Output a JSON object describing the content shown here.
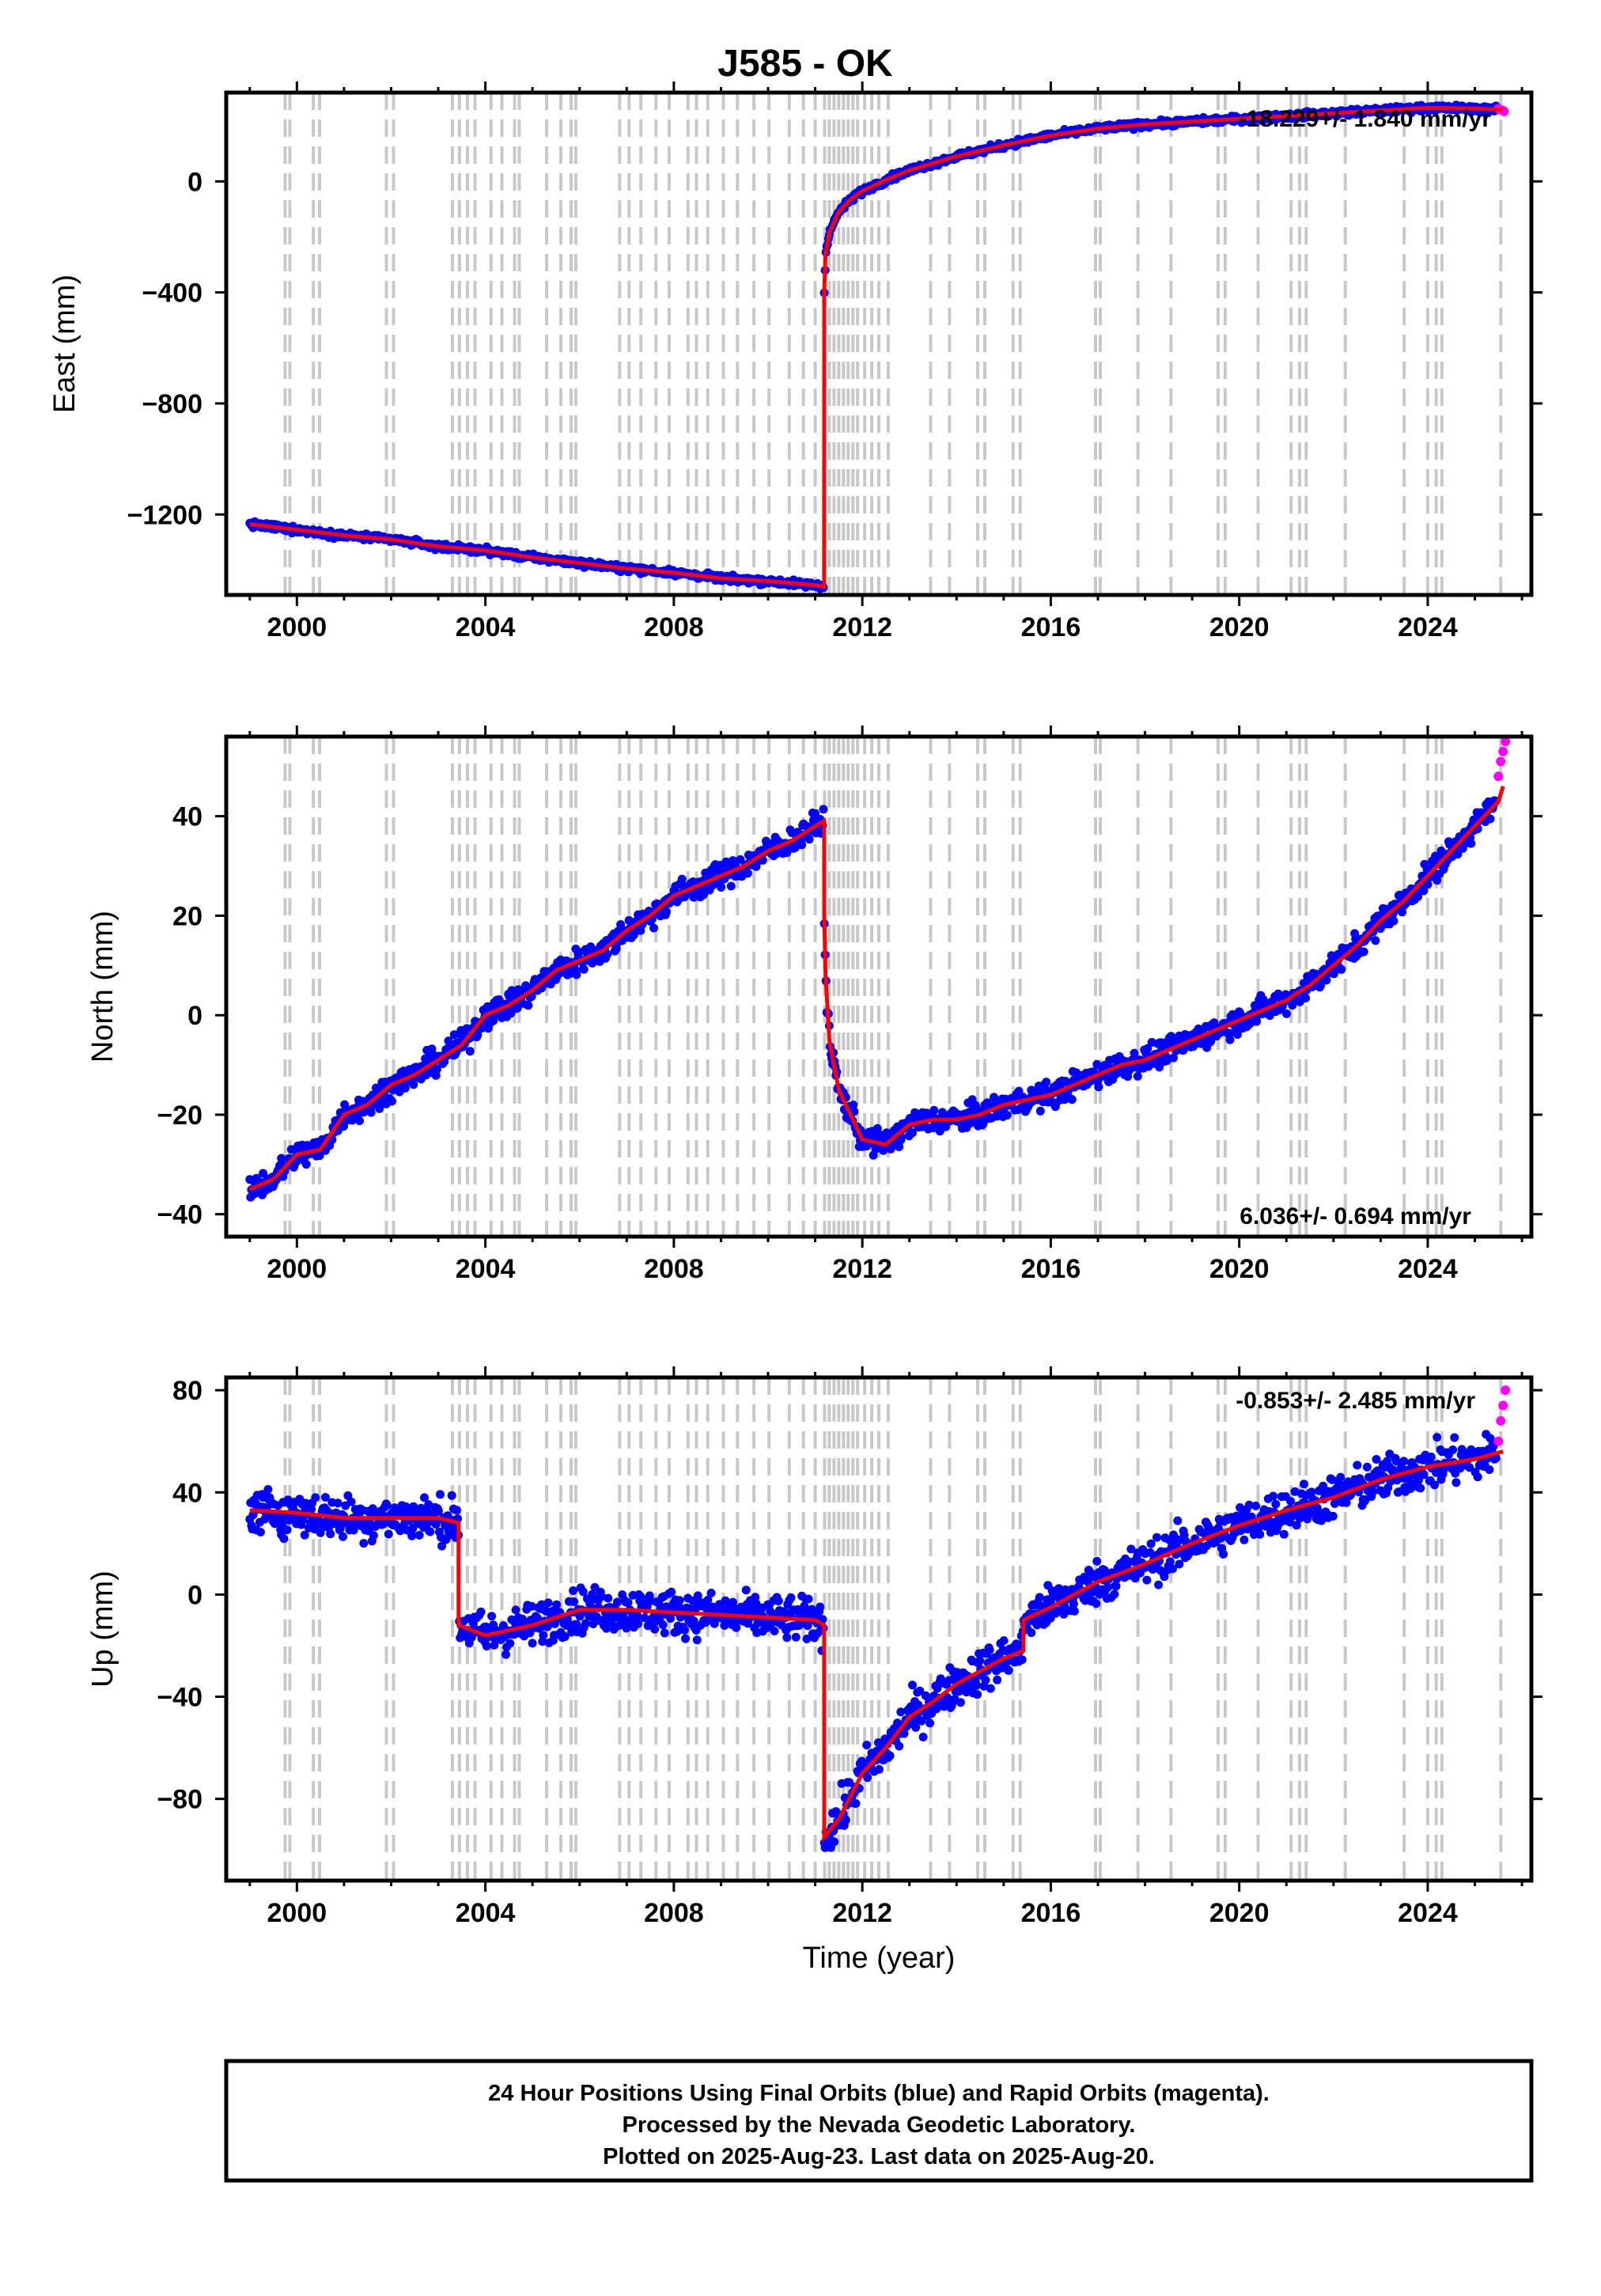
{
  "title": "J585 - OK",
  "caption": {
    "line1": "24 Hour Positions Using Final Orbits (blue) and Rapid Orbits (magenta).",
    "line2": "Processed by the Nevada Geodetic Laboratory.",
    "line3": "Plotted on 2025-Aug-23. Last data on 2025-Aug-20."
  },
  "colors": {
    "final_orbits": "#0000ff",
    "rapid_orbits": "#ff00ff",
    "model": "#ff0000",
    "events": "#c8c8c8"
  },
  "chart_data": [
    {
      "type": "scatter",
      "ylabel": "East (mm)",
      "xlabel": "",
      "xlim": [
        1998.5,
        2026.2
      ],
      "ylim": [
        -1490,
        320
      ],
      "xticks": [
        2000,
        2004,
        2008,
        2012,
        2016,
        2020,
        2024
      ],
      "yticks": [
        0,
        -400,
        -800,
        -1200
      ],
      "rate": "-18.229+/- 1.840 mm/yr",
      "grid": false,
      "model": {
        "x": [
          1999.0,
          2000.0,
          2001.0,
          2002.0,
          2003.0,
          2004.0,
          2005.0,
          2006.0,
          2007.0,
          2008.0,
          2009.0,
          2010.0,
          2011.0,
          2011.19,
          2011.192,
          2011.22,
          2011.3,
          2011.5,
          2011.75,
          2012.0,
          2012.5,
          2013.0,
          2014.0,
          2015.0,
          2016.0,
          2017.0,
          2018.0,
          2019.0,
          2020.0,
          2021.0,
          2022.0,
          2023.0,
          2024.0,
          2025.0,
          2025.6
        ],
        "y": [
          -1235,
          -1255,
          -1275,
          -1290,
          -1315,
          -1330,
          -1355,
          -1375,
          -1395,
          -1410,
          -1430,
          -1440,
          -1455,
          -1460,
          -400,
          -260,
          -185,
          -110,
          -65,
          -35,
          5,
          40,
          90,
          130,
          165,
          190,
          205,
          215,
          225,
          235,
          245,
          255,
          265,
          262,
          258
        ]
      },
      "blue_scatter": 8,
      "rapid": {
        "x": [
          2025.5,
          2025.55,
          2025.6,
          2025.62
        ],
        "y": [
          262,
          258,
          255,
          252
        ]
      }
    },
    {
      "type": "scatter",
      "ylabel": "North (mm)",
      "xlabel": "",
      "xlim": [
        1998.5,
        2026.2
      ],
      "ylim": [
        -44.5,
        56
      ],
      "xticks": [
        2000,
        2004,
        2008,
        2012,
        2016,
        2020,
        2024
      ],
      "yticks": [
        40,
        20,
        0,
        -20,
        -40
      ],
      "rate": "6.036+/- 0.694 mm/yr",
      "grid": false,
      "model": {
        "x": [
          1999.0,
          1999.5,
          2000.0,
          2000.5,
          2001.0,
          2001.5,
          2002.0,
          2002.5,
          2003.0,
          2003.5,
          2004.0,
          2004.5,
          2005.0,
          2005.5,
          2006.0,
          2006.5,
          2007.0,
          2007.5,
          2008.0,
          2008.5,
          2009.0,
          2009.5,
          2010.0,
          2010.5,
          2011.0,
          2011.19,
          2011.192,
          2011.22,
          2011.3,
          2011.5,
          2011.75,
          2012.0,
          2012.5,
          2013.0,
          2013.5,
          2014.0,
          2014.5,
          2015.0,
          2015.5,
          2016.0,
          2016.5,
          2017.0,
          2017.5,
          2018.0,
          2018.5,
          2019.0,
          2019.5,
          2020.0,
          2020.5,
          2021.0,
          2021.5,
          2022.0,
          2022.5,
          2023.0,
          2023.5,
          2024.0,
          2024.5,
          2025.0,
          2025.5,
          2025.6
        ],
        "y": [
          -35,
          -33,
          -28,
          -27,
          -20,
          -18,
          -14,
          -12,
          -9,
          -6,
          0,
          2,
          5,
          9,
          11,
          13,
          17,
          20,
          24,
          26,
          28,
          30,
          33,
          35,
          38,
          39,
          20,
          8,
          -5,
          -15,
          -20,
          -25,
          -26,
          -22,
          -21,
          -21,
          -20,
          -18,
          -17,
          -16,
          -14,
          -12,
          -10,
          -9,
          -7,
          -5,
          -3,
          -1,
          1,
          3,
          6,
          10,
          14,
          19,
          23,
          28,
          33,
          38,
          43,
          46
        ]
      },
      "blue_scatter": 1.8,
      "rapid": {
        "x": [
          2025.5,
          2025.55,
          2025.6,
          2025.65
        ],
        "y": [
          48,
          51,
          53,
          55
        ]
      }
    },
    {
      "type": "scatter",
      "ylabel": "Up (mm)",
      "xlabel": "Time (year)",
      "xlim": [
        1998.5,
        2026.2
      ],
      "ylim": [
        -112,
        85
      ],
      "xticks": [
        2000,
        2004,
        2008,
        2012,
        2016,
        2020,
        2024
      ],
      "yticks": [
        80,
        40,
        0,
        -40,
        -80
      ],
      "rate": "-0.853+/- 2.485 mm/yr",
      "grid": false,
      "model": {
        "x": [
          1999.0,
          2000.0,
          2001.0,
          2002.0,
          2003.0,
          2003.43,
          2003.432,
          2004.0,
          2005.0,
          2006.0,
          2007.0,
          2008.0,
          2009.0,
          2010.0,
          2011.0,
          2011.19,
          2011.192,
          2011.5,
          2012.0,
          2012.5,
          2013.0,
          2013.5,
          2014.0,
          2014.5,
          2015.0,
          2015.42,
          2015.422,
          2016.0,
          2017.0,
          2018.0,
          2019.0,
          2020.0,
          2021.0,
          2022.0,
          2023.0,
          2024.0,
          2025.0,
          2025.6
        ],
        "y": [
          33,
          32,
          30,
          30,
          30,
          28,
          -12,
          -16,
          -12,
          -6,
          -6,
          -7,
          -8,
          -9,
          -10,
          -12,
          -95,
          -88,
          -70,
          -60,
          -48,
          -42,
          -35,
          -30,
          -25,
          -22,
          -10,
          -5,
          5,
          12,
          20,
          27,
          33,
          38,
          45,
          50,
          53,
          56
        ]
      },
      "blue_scatter": 6,
      "rapid": {
        "x": [
          2025.5,
          2025.55,
          2025.6,
          2025.65
        ],
        "y": [
          60,
          68,
          74,
          80
        ]
      }
    }
  ],
  "event_years": [
    1999.75,
    1999.85,
    2000.35,
    2000.48,
    2001.9,
    2002.05,
    2003.3,
    2003.45,
    2003.62,
    2003.78,
    2004.12,
    2004.35,
    2004.62,
    2004.72,
    2005.3,
    2005.6,
    2005.82,
    2005.92,
    2006.85,
    2007.05,
    2007.3,
    2007.62,
    2007.9,
    2008.3,
    2008.48,
    2008.72,
    2009.05,
    2009.35,
    2009.7,
    2010.02,
    2010.45,
    2010.75,
    2011.0,
    2011.2,
    2011.3,
    2011.4,
    2011.5,
    2011.6,
    2011.7,
    2011.8,
    2011.9,
    2012.05,
    2012.2,
    2012.35,
    2012.55,
    2013.45,
    2013.85,
    2014.45,
    2014.6,
    2015.2,
    2015.35,
    2016.95,
    2017.05,
    2017.85,
    2018.55,
    2019.55,
    2019.7,
    2020.4,
    2021.1,
    2021.28,
    2021.42,
    2022.25,
    2023.5,
    2024.0,
    2024.18,
    2024.3,
    2025.55
  ]
}
